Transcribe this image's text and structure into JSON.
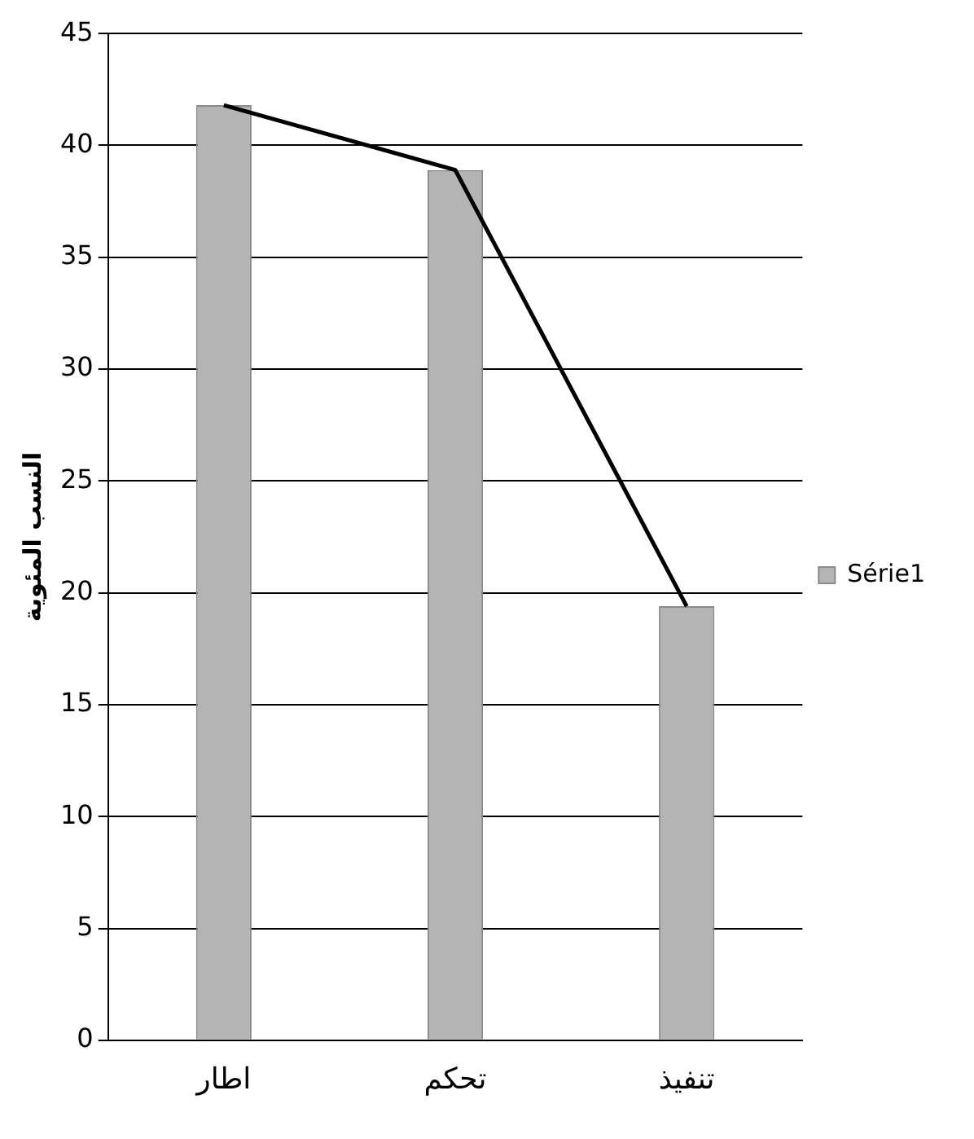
{
  "chart_data": {
    "type": "bar",
    "ylabel": "النسب المئوية",
    "categories": [
      "اطار",
      "تحكم",
      "تنفيذ"
    ],
    "series": [
      {
        "name": "Série1",
        "color": "#b4b4b4",
        "values": [
          41.8,
          38.9,
          19.4
        ]
      },
      {
        "type": "line",
        "color": "#000000",
        "values": [
          41.8,
          38.9,
          19.4
        ]
      }
    ],
    "ylim": [
      0,
      45
    ],
    "yticks": [
      0,
      5,
      10,
      15,
      20,
      25,
      30,
      35,
      40,
      45
    ],
    "grid": "y",
    "legend": "right",
    "marker": "none",
    "line_style": "solid"
  }
}
